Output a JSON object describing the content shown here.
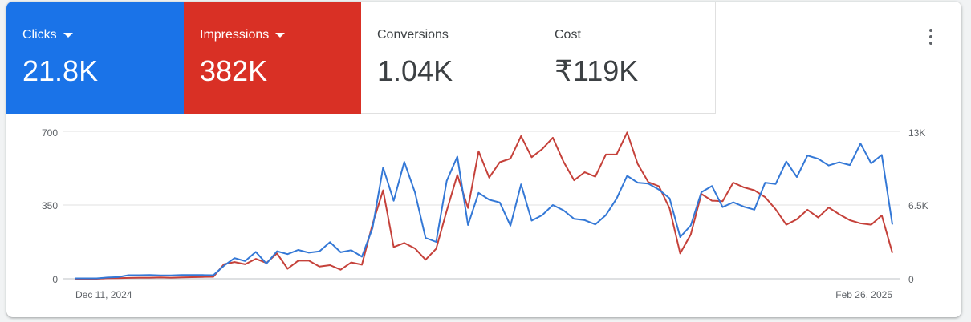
{
  "metrics": [
    {
      "label": "Clicks",
      "value": "21.8K",
      "color": "#1a73e8"
    },
    {
      "label": "Impressions",
      "value": "382K",
      "color": "#d93025"
    },
    {
      "label": "Conversions",
      "value": "1.04K"
    },
    {
      "label": "Cost",
      "value": "₹119K"
    }
  ],
  "icons": {
    "menu": "more-vert-icon",
    "dropdown": "arrow-drop-down-icon"
  },
  "chart_data": {
    "type": "line",
    "x_labels": [
      "Dec 11, 2024",
      "Feb 26, 2025"
    ],
    "y_left_ticks": [
      "700",
      "350",
      "0"
    ],
    "y_right_ticks": [
      "13K",
      "6.5K",
      "0"
    ],
    "ylim_left": [
      0,
      700
    ],
    "ylim_right": [
      0,
      13000
    ],
    "grid": true,
    "series": [
      {
        "name": "Clicks",
        "axis": "left",
        "color": "#3478d6",
        "values": [
          2,
          2,
          2,
          6,
          8,
          17,
          17,
          18,
          16,
          16,
          18,
          18,
          18,
          17,
          62,
          98,
          84,
          128,
          72,
          131,
          117,
          137,
          124,
          130,
          174,
          126,
          136,
          105,
          240,
          528,
          370,
          555,
          410,
          194,
          175,
          465,
          580,
          255,
          408,
          375,
          362,
          252,
          448,
          276,
          302,
          350,
          325,
          284,
          278,
          258,
          302,
          380,
          489,
          456,
          452,
          423,
          382,
          198,
          253,
          411,
          440,
          340,
          363,
          342,
          328,
          456,
          450,
          557,
          483,
          585,
          570,
          538,
          553,
          540,
          642,
          548,
          588,
          257
        ]
      },
      {
        "name": "Impressions",
        "axis": "right",
        "color": "#c5413a",
        "values": [
          0,
          0,
          0,
          40,
          60,
          80,
          100,
          100,
          120,
          100,
          120,
          140,
          160,
          180,
          1280,
          1480,
          1280,
          1760,
          1400,
          2240,
          880,
          1600,
          1600,
          1080,
          1200,
          800,
          1440,
          1240,
          4800,
          7800,
          2800,
          3160,
          2680,
          1680,
          2640,
          6000,
          9160,
          6240,
          11240,
          8920,
          10280,
          10600,
          12580,
          10720,
          11440,
          12440,
          10320,
          8680,
          9400,
          9000,
          10960,
          10960,
          12900,
          10120,
          8520,
          8160,
          6200,
          2240,
          3900,
          7480,
          6880,
          6840,
          8480,
          8060,
          7800,
          7200,
          6120,
          4760,
          5240,
          6080,
          5400,
          6280,
          5680,
          5160,
          4880,
          4760,
          5580,
          2280
        ]
      }
    ]
  }
}
